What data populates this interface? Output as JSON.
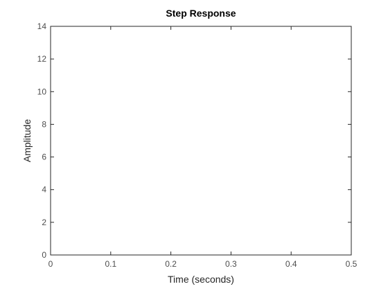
{
  "chart_data": {
    "type": "line",
    "title": "Step Response",
    "xlabel": "Time (seconds)",
    "ylabel": "Amplitude",
    "xlim": [
      0,
      0.5
    ],
    "ylim": [
      0,
      14
    ],
    "xticks": [
      "0",
      "0.1",
      "0.2",
      "0.3",
      "0.4",
      "0.5"
    ],
    "yticks": [
      "0",
      "2",
      "4",
      "6",
      "8",
      "10",
      "12",
      "14"
    ],
    "series": [],
    "grid": false,
    "legend": "none"
  },
  "colors": {
    "axes": "#262626",
    "tick_text": "#4d4d4d",
    "background": "#ffffff"
  }
}
